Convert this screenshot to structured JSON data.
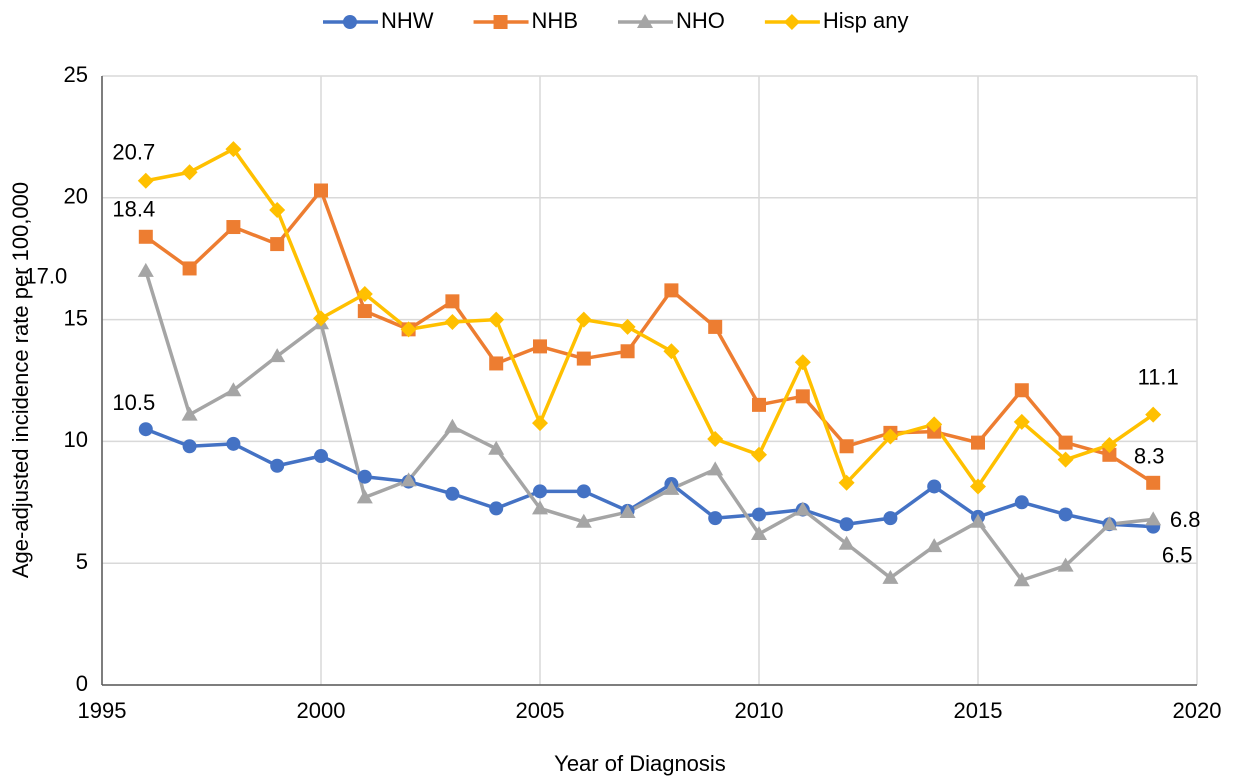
{
  "chart_data": {
    "type": "line",
    "x_label": "Year of Diagnosis",
    "y_label": "Age-adjusted incidence rate per 100,000",
    "x": [
      1996,
      1997,
      1998,
      1999,
      2000,
      2001,
      2002,
      2003,
      2004,
      2005,
      2006,
      2007,
      2008,
      2009,
      2010,
      2011,
      2012,
      2013,
      2014,
      2015,
      2016,
      2017,
      2018,
      2019
    ],
    "series": [
      {
        "name": "NHW",
        "color": "#4472c4",
        "marker": "circle",
        "values": [
          10.5,
          9.8,
          9.9,
          9.0,
          9.4,
          8.55,
          8.35,
          7.85,
          7.25,
          7.95,
          7.95,
          7.15,
          8.25,
          6.85,
          7.0,
          7.2,
          6.6,
          6.85,
          8.15,
          6.9,
          7.5,
          7.0,
          6.6,
          6.5
        ],
        "value_labels": [
          "10.5",
          null,
          null,
          null,
          null,
          null,
          null,
          null,
          null,
          null,
          null,
          null,
          null,
          null,
          null,
          null,
          null,
          null,
          null,
          null,
          null,
          null,
          null,
          "6.5"
        ]
      },
      {
        "name": "NHB",
        "color": "#ed7d31",
        "marker": "square",
        "values": [
          18.4,
          17.1,
          18.8,
          18.1,
          20.3,
          15.35,
          14.6,
          15.75,
          13.2,
          13.9,
          13.4,
          13.7,
          16.2,
          14.7,
          11.5,
          11.85,
          9.8,
          10.35,
          10.4,
          9.95,
          12.1,
          9.95,
          9.45,
          8.3
        ],
        "value_labels": [
          "18.4",
          null,
          null,
          null,
          null,
          null,
          null,
          null,
          null,
          null,
          null,
          null,
          null,
          null,
          null,
          null,
          null,
          null,
          null,
          null,
          null,
          null,
          null,
          "8.3"
        ]
      },
      {
        "name": "NHO",
        "color": "#a5a5a5",
        "marker": "triangle",
        "values": [
          17.0,
          11.1,
          12.1,
          13.5,
          14.85,
          7.7,
          8.4,
          10.6,
          9.7,
          7.25,
          6.7,
          7.1,
          8.05,
          8.85,
          6.2,
          7.2,
          5.8,
          4.4,
          5.7,
          6.7,
          4.3,
          4.9,
          6.6,
          6.8
        ],
        "value_labels": [
          "17.0",
          null,
          null,
          null,
          null,
          null,
          null,
          null,
          null,
          null,
          null,
          null,
          null,
          null,
          null,
          null,
          null,
          null,
          null,
          null,
          null,
          null,
          null,
          "6.8"
        ]
      },
      {
        "name": "Hisp any",
        "color": "#ffc000",
        "marker": "diamond",
        "values": [
          20.7,
          21.05,
          22.0,
          19.5,
          15.05,
          16.05,
          14.6,
          14.9,
          15.0,
          10.75,
          15.0,
          14.7,
          13.7,
          10.1,
          9.45,
          13.25,
          8.3,
          10.2,
          10.7,
          8.15,
          10.8,
          9.25,
          9.85,
          11.1
        ],
        "value_labels": [
          "20.7",
          null,
          null,
          null,
          null,
          null,
          null,
          null,
          null,
          null,
          null,
          null,
          null,
          null,
          null,
          null,
          null,
          null,
          null,
          null,
          null,
          null,
          null,
          "11.1"
        ]
      }
    ],
    "xlim": [
      1995,
      2020
    ],
    "xticks": [
      1995,
      2000,
      2005,
      2010,
      2015,
      2020
    ],
    "ylim": [
      0,
      25
    ],
    "yticks": [
      0,
      5,
      10,
      15,
      20,
      25
    ],
    "grid": true,
    "legend": "top"
  }
}
